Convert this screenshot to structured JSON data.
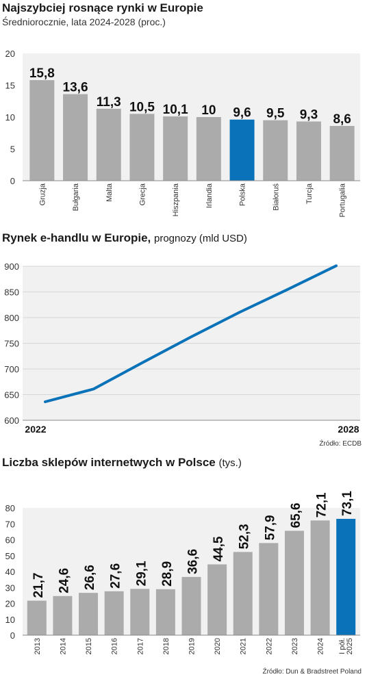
{
  "colors": {
    "bar": "#ababab",
    "highlight": "#0a72b8",
    "panel": "#f1f1f1",
    "line": "#0a72b8"
  },
  "section1": {
    "title": "Najszybciej rosnące rynki w Europie",
    "subtitle": "Średniorocznie, lata 2024-2028 (proc.)"
  },
  "section2": {
    "title": "Rynek e-handlu w Europie,",
    "title_unit": "prognozy (mld USD)",
    "source": "Źródło: ECDB"
  },
  "section3": {
    "title": "Liczba sklepów internetwych w Polsce",
    "title_unit": "(tys.)",
    "source": "Źródło: Dun & Bradstreet Poland"
  },
  "chart_data": [
    {
      "type": "bar",
      "title": "Najszybciej rosnące rynki w Europie",
      "subtitle": "Średniorocznie, lata 2024-2028 (proc.)",
      "categories": [
        "Gruzja",
        "Bułgaria",
        "Malta",
        "Grecja",
        "Hiszpania",
        "Irlandia",
        "Polska",
        "Białoruś",
        "Turcja",
        "Portugalia"
      ],
      "values": [
        15.8,
        13.6,
        11.3,
        10.5,
        10.1,
        10,
        9.6,
        9.5,
        9.3,
        8.6
      ],
      "value_labels": [
        "15,8",
        "13,6",
        "11,3",
        "10,5",
        "10,1",
        "10",
        "9,6",
        "9,5",
        "9,3",
        "8,6"
      ],
      "highlight": "Polska",
      "ylim": [
        0,
        20
      ],
      "yticks": [
        "0",
        "5",
        "10",
        "15",
        "20"
      ]
    },
    {
      "type": "line",
      "title": "Rynek e-handlu w Europie, prognozy (mld USD)",
      "x": [
        2022,
        2023,
        2024,
        2025,
        2026,
        2027,
        2028
      ],
      "x_labels": [
        "2022",
        "2028"
      ],
      "values": [
        636,
        661,
        712,
        762,
        810,
        855,
        901
      ],
      "ylim": [
        600,
        900
      ],
      "yticks": [
        "600",
        "650",
        "700",
        "750",
        "800",
        "850",
        "900"
      ]
    },
    {
      "type": "bar",
      "title": "Liczba sklepów internetwych w Polsce (tys.)",
      "categories": [
        "2013",
        "2014",
        "2015",
        "2016",
        "2017",
        "2018",
        "2019",
        "2020",
        "2021",
        "2022",
        "2023",
        "2024",
        "I pół. 2025"
      ],
      "category_lines": [
        [
          "2013"
        ],
        [
          "2014"
        ],
        [
          "2015"
        ],
        [
          "2016"
        ],
        [
          "2017"
        ],
        [
          "2018"
        ],
        [
          "2019"
        ],
        [
          "2020"
        ],
        [
          "2021"
        ],
        [
          "2022"
        ],
        [
          "2023"
        ],
        [
          "2024"
        ],
        [
          "I pół.",
          "2025"
        ]
      ],
      "values": [
        21.7,
        24.6,
        26.6,
        27.6,
        29.1,
        28.9,
        36.6,
        44.5,
        52.3,
        57.9,
        65.6,
        72.1,
        73.1
      ],
      "value_labels": [
        "21,7",
        "24,6",
        "26,6",
        "27,6",
        "29,1",
        "28,9",
        "36,6",
        "44,5",
        "52,3",
        "57,9",
        "65,6",
        "72,1",
        "73,1"
      ],
      "highlight": "I pół. 2025",
      "ylim": [
        0,
        80
      ],
      "yticks": [
        "0",
        "10",
        "20",
        "30",
        "40",
        "50",
        "60",
        "70",
        "80"
      ]
    }
  ]
}
